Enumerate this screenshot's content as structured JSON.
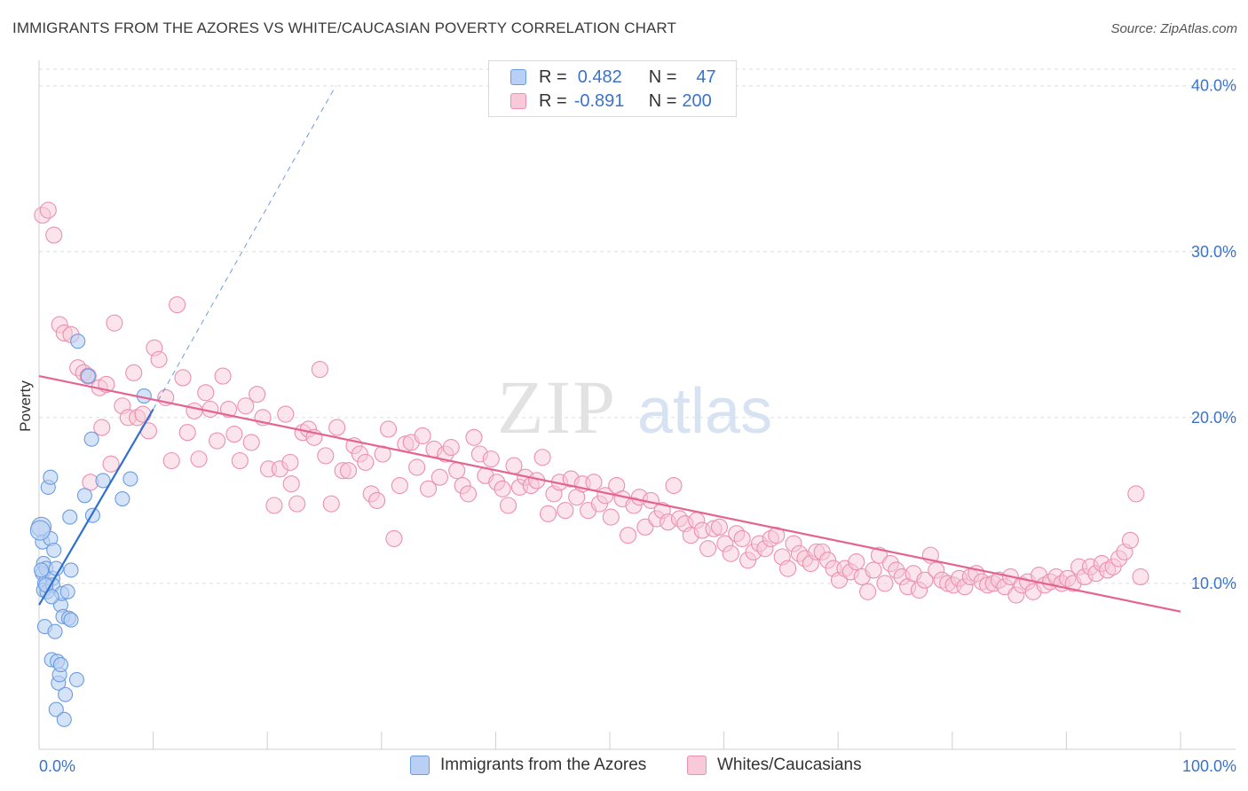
{
  "title": "IMMIGRANTS FROM THE AZORES VS WHITE/CAUCASIAN POVERTY CORRELATION CHART",
  "source": "Source: ZipAtlas.com",
  "watermark": {
    "zip": "ZIP",
    "atlas": "atlas"
  },
  "legend": {
    "row1": {
      "r_label": "R =",
      "r_value": "0.482",
      "n_label": "N =",
      "n_value": "47"
    },
    "row2": {
      "r_label": "R =",
      "r_value": "-0.891",
      "n_label": "N =",
      "n_value": "200"
    }
  },
  "bottom_legend": {
    "series1": "Immigrants from the Azores",
    "series2": "Whites/Caucasians"
  },
  "colors": {
    "blue": "#6a9de0",
    "blue_fill": "#b9d0f4",
    "blue_line": "#2f6fd0",
    "pink": "#ec8fb0",
    "pink_fill": "#f8c9d8",
    "pink_line": "#e4638f",
    "grid": "#dddddd",
    "axis_text": "#3a73c9"
  },
  "chart_data": {
    "type": "scatter",
    "title": "IMMIGRANTS FROM THE AZORES VS WHITE/CAUCASIAN POVERTY CORRELATION CHART",
    "xlabel": "",
    "ylabel": "Poverty",
    "xlim": [
      0,
      100
    ],
    "ylim": [
      0,
      41
    ],
    "x_tick_labels": [
      "0.0%",
      "100.0%"
    ],
    "y_ticks": [
      10,
      20,
      30,
      40
    ],
    "y_tick_labels": [
      "10.0%",
      "20.0%",
      "30.0%",
      "40.0%"
    ],
    "grid": true,
    "legend_position": "top-center",
    "series": [
      {
        "name": "Immigrants from the Azores",
        "points": [
          [
            0.2,
            13.4
          ],
          [
            0.3,
            12.5
          ],
          [
            0.4,
            11.2
          ],
          [
            0.3,
            10.6
          ],
          [
            0.5,
            10.0
          ],
          [
            0.6,
            10.9
          ],
          [
            0.4,
            9.6
          ],
          [
            0.5,
            7.4
          ],
          [
            0.7,
            9.5
          ],
          [
            0.8,
            15.8
          ],
          [
            1.0,
            16.4
          ],
          [
            1.0,
            12.7
          ],
          [
            1.1,
            5.4
          ],
          [
            1.2,
            10.3
          ],
          [
            1.2,
            9.9
          ],
          [
            1.3,
            12.0
          ],
          [
            1.4,
            7.1
          ],
          [
            1.5,
            10.9
          ],
          [
            1.6,
            5.3
          ],
          [
            1.5,
            2.4
          ],
          [
            1.7,
            4.0
          ],
          [
            1.8,
            4.5
          ],
          [
            1.9,
            5.1
          ],
          [
            1.9,
            8.7
          ],
          [
            2.0,
            9.4
          ],
          [
            2.1,
            8.0
          ],
          [
            2.2,
            1.8
          ],
          [
            2.3,
            3.3
          ],
          [
            2.5,
            9.5
          ],
          [
            2.6,
            7.9
          ],
          [
            2.7,
            14.0
          ],
          [
            2.8,
            7.8
          ],
          [
            2.8,
            10.8
          ],
          [
            3.3,
            4.2
          ],
          [
            3.4,
            24.6
          ],
          [
            4.0,
            15.3
          ],
          [
            4.3,
            22.5
          ],
          [
            4.6,
            18.7
          ],
          [
            4.7,
            14.1
          ],
          [
            5.6,
            16.2
          ],
          [
            7.3,
            15.1
          ],
          [
            8.0,
            16.3
          ],
          [
            9.2,
            21.3
          ],
          [
            0.2,
            10.8
          ],
          [
            0.1,
            13.2
          ],
          [
            0.6,
            9.9
          ],
          [
            1.1,
            9.2
          ]
        ]
      },
      {
        "name": "Whites/Caucasians",
        "points": [
          [
            0.3,
            32.2
          ],
          [
            0.8,
            32.5
          ],
          [
            1.3,
            31.0
          ],
          [
            1.8,
            25.6
          ],
          [
            2.2,
            25.1
          ],
          [
            2.8,
            25.0
          ],
          [
            3.4,
            23.0
          ],
          [
            3.9,
            22.7
          ],
          [
            4.3,
            22.5
          ],
          [
            4.5,
            16.1
          ],
          [
            5.3,
            21.8
          ],
          [
            5.5,
            19.4
          ],
          [
            5.9,
            22.0
          ],
          [
            6.3,
            17.2
          ],
          [
            6.6,
            25.7
          ],
          [
            7.3,
            20.7
          ],
          [
            7.8,
            20.0
          ],
          [
            8.3,
            22.7
          ],
          [
            8.6,
            20.0
          ],
          [
            9.1,
            20.2
          ],
          [
            9.6,
            19.2
          ],
          [
            10.1,
            24.2
          ],
          [
            10.5,
            23.5
          ],
          [
            11.1,
            21.2
          ],
          [
            11.6,
            17.4
          ],
          [
            12.1,
            26.8
          ],
          [
            12.6,
            22.4
          ],
          [
            13.0,
            19.1
          ],
          [
            13.6,
            20.4
          ],
          [
            14.0,
            17.5
          ],
          [
            14.6,
            21.5
          ],
          [
            15.0,
            20.5
          ],
          [
            15.6,
            18.6
          ],
          [
            16.1,
            22.5
          ],
          [
            16.6,
            20.5
          ],
          [
            17.1,
            19.0
          ],
          [
            17.6,
            17.4
          ],
          [
            18.1,
            20.7
          ],
          [
            18.6,
            18.5
          ],
          [
            19.1,
            21.4
          ],
          [
            19.6,
            20.0
          ],
          [
            20.1,
            16.9
          ],
          [
            20.6,
            14.7
          ],
          [
            21.1,
            16.9
          ],
          [
            21.6,
            20.2
          ],
          [
            22.1,
            16.0
          ],
          [
            22.6,
            14.8
          ],
          [
            23.1,
            19.1
          ],
          [
            23.6,
            19.3
          ],
          [
            24.1,
            18.8
          ],
          [
            24.6,
            22.9
          ],
          [
            25.1,
            17.7
          ],
          [
            25.6,
            14.8
          ],
          [
            26.1,
            19.4
          ],
          [
            26.6,
            16.8
          ],
          [
            27.1,
            16.8
          ],
          [
            27.6,
            18.3
          ],
          [
            28.1,
            17.8
          ],
          [
            28.6,
            17.3
          ],
          [
            29.1,
            15.4
          ],
          [
            29.6,
            15.0
          ],
          [
            30.1,
            17.8
          ],
          [
            30.6,
            19.3
          ],
          [
            31.1,
            12.7
          ],
          [
            31.6,
            15.9
          ],
          [
            32.1,
            18.4
          ],
          [
            32.6,
            18.5
          ],
          [
            33.1,
            17.0
          ],
          [
            33.6,
            18.9
          ],
          [
            34.1,
            15.7
          ],
          [
            34.6,
            18.1
          ],
          [
            35.1,
            16.4
          ],
          [
            35.6,
            17.8
          ],
          [
            36.1,
            18.2
          ],
          [
            36.6,
            16.8
          ],
          [
            37.1,
            15.9
          ],
          [
            37.6,
            15.4
          ],
          [
            38.1,
            18.8
          ],
          [
            38.6,
            17.8
          ],
          [
            39.1,
            16.5
          ],
          [
            39.6,
            17.5
          ],
          [
            40.1,
            16.1
          ],
          [
            40.6,
            15.7
          ],
          [
            41.1,
            14.7
          ],
          [
            41.6,
            17.1
          ],
          [
            42.1,
            15.8
          ],
          [
            42.6,
            16.4
          ],
          [
            43.1,
            15.9
          ],
          [
            43.6,
            16.2
          ],
          [
            44.1,
            17.6
          ],
          [
            44.6,
            14.2
          ],
          [
            45.1,
            15.4
          ],
          [
            45.6,
            16.1
          ],
          [
            46.1,
            14.4
          ],
          [
            46.6,
            16.3
          ],
          [
            47.1,
            15.2
          ],
          [
            47.6,
            16.0
          ],
          [
            48.1,
            14.4
          ],
          [
            48.6,
            16.1
          ],
          [
            49.1,
            14.8
          ],
          [
            49.6,
            15.3
          ],
          [
            50.1,
            14.0
          ],
          [
            50.6,
            15.9
          ],
          [
            51.1,
            15.1
          ],
          [
            51.6,
            12.9
          ],
          [
            52.1,
            14.7
          ],
          [
            52.6,
            15.2
          ],
          [
            53.1,
            13.4
          ],
          [
            53.6,
            15.0
          ],
          [
            54.1,
            13.9
          ],
          [
            54.6,
            14.4
          ],
          [
            55.1,
            13.7
          ],
          [
            55.6,
            15.9
          ],
          [
            56.1,
            13.9
          ],
          [
            56.6,
            13.6
          ],
          [
            57.1,
            12.9
          ],
          [
            57.6,
            13.8
          ],
          [
            58.1,
            13.2
          ],
          [
            58.6,
            12.1
          ],
          [
            59.1,
            13.3
          ],
          [
            59.6,
            13.4
          ],
          [
            60.1,
            12.4
          ],
          [
            60.6,
            11.8
          ],
          [
            61.1,
            13.0
          ],
          [
            61.6,
            12.7
          ],
          [
            62.1,
            11.4
          ],
          [
            62.6,
            11.9
          ],
          [
            63.1,
            12.4
          ],
          [
            63.6,
            12.1
          ],
          [
            64.1,
            12.7
          ],
          [
            64.6,
            12.9
          ],
          [
            65.1,
            11.6
          ],
          [
            65.6,
            10.9
          ],
          [
            66.1,
            12.4
          ],
          [
            66.6,
            11.8
          ],
          [
            67.1,
            11.5
          ],
          [
            67.6,
            11.2
          ],
          [
            68.1,
            11.9
          ],
          [
            68.6,
            11.9
          ],
          [
            69.1,
            11.4
          ],
          [
            69.6,
            10.9
          ],
          [
            70.1,
            10.2
          ],
          [
            70.6,
            10.9
          ],
          [
            71.1,
            10.7
          ],
          [
            71.6,
            11.3
          ],
          [
            72.1,
            10.4
          ],
          [
            72.6,
            9.5
          ],
          [
            73.1,
            10.8
          ],
          [
            73.6,
            11.7
          ],
          [
            74.1,
            10.0
          ],
          [
            74.6,
            11.2
          ],
          [
            75.1,
            10.8
          ],
          [
            75.6,
            10.4
          ],
          [
            76.1,
            9.8
          ],
          [
            76.6,
            10.6
          ],
          [
            77.1,
            9.6
          ],
          [
            77.6,
            10.2
          ],
          [
            78.1,
            11.7
          ],
          [
            78.6,
            10.8
          ],
          [
            79.1,
            10.2
          ],
          [
            79.6,
            10.0
          ],
          [
            80.1,
            9.9
          ],
          [
            80.6,
            10.3
          ],
          [
            81.1,
            9.8
          ],
          [
            81.6,
            10.4
          ],
          [
            82.1,
            10.6
          ],
          [
            82.6,
            10.1
          ],
          [
            83.1,
            9.9
          ],
          [
            83.6,
            10.0
          ],
          [
            84.1,
            10.2
          ],
          [
            84.6,
            9.8
          ],
          [
            85.1,
            10.4
          ],
          [
            85.6,
            9.3
          ],
          [
            86.1,
            9.9
          ],
          [
            86.6,
            10.1
          ],
          [
            87.1,
            9.5
          ],
          [
            87.6,
            10.5
          ],
          [
            88.1,
            9.9
          ],
          [
            88.6,
            10.1
          ],
          [
            89.1,
            10.4
          ],
          [
            89.6,
            10.0
          ],
          [
            90.1,
            10.3
          ],
          [
            90.6,
            10.0
          ],
          [
            91.1,
            11.0
          ],
          [
            91.6,
            10.4
          ],
          [
            92.1,
            11.0
          ],
          [
            92.6,
            10.6
          ],
          [
            93.1,
            11.2
          ],
          [
            93.6,
            10.8
          ],
          [
            94.1,
            11.0
          ],
          [
            94.6,
            11.5
          ],
          [
            95.1,
            11.9
          ],
          [
            95.6,
            12.6
          ],
          [
            96.1,
            15.4
          ],
          [
            96.5,
            10.4
          ],
          [
            22.0,
            17.3
          ]
        ]
      }
    ],
    "trendlines": [
      {
        "series": "Immigrants from the Azores",
        "x": [
          0,
          10
        ],
        "y": [
          8.7,
          20.5
        ],
        "dashed_extension_to": [
          26,
          40
        ]
      },
      {
        "series": "Whites/Caucasians",
        "x": [
          0,
          100
        ],
        "y": [
          22.5,
          8.3
        ]
      }
    ]
  }
}
